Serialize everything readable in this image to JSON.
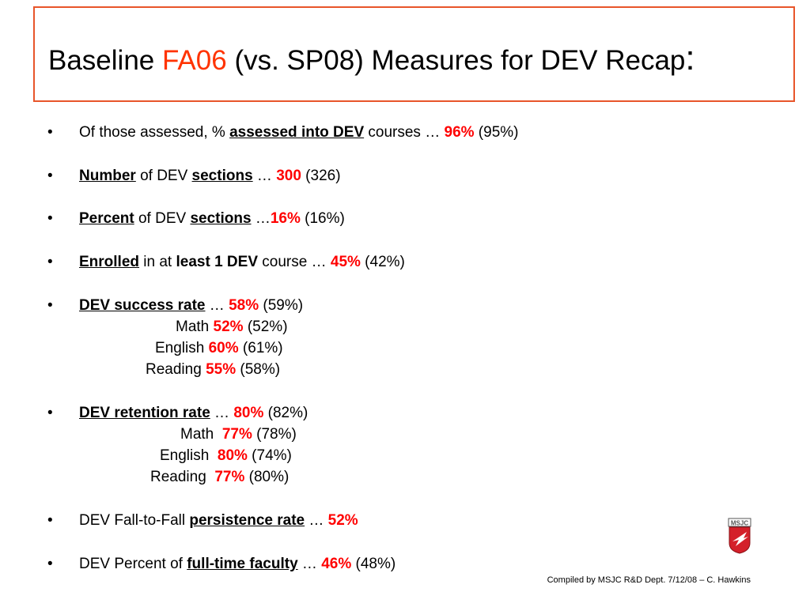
{
  "title": {
    "prefix": "Baseline ",
    "highlight": "FA06",
    "suffix": " (vs. SP08) Measures for DEV Recap",
    "colon": ":",
    "highlight_color": "#ff3300"
  },
  "bullet_char": "•",
  "items": {
    "assessed": {
      "pre": "Of those assessed, % ",
      "term": "assessed into DEV",
      "mid": " courses … ",
      "value": "96%",
      "prev": " (95%)"
    },
    "number_sections": {
      "term1": "Number",
      "mid1": " of DEV ",
      "term2": "sections",
      "mid2": " … ",
      "value": "300",
      "prev": " (326)"
    },
    "percent_sections": {
      "term1": "Percent",
      "mid1": " of DEV ",
      "term2": "sections",
      "mid2": " …",
      "value": "16%",
      "prev": " (16%)"
    },
    "enrolled": {
      "term1": "Enrolled",
      "mid1": " in at ",
      "term2": "least 1 DEV",
      "mid2": " course … ",
      "value": "45%",
      "prev": " (42%)"
    },
    "success": {
      "term": "DEV success rate",
      "mid": " … ",
      "value": "58%",
      "prev": " (59%)",
      "subs": [
        {
          "label": "Math ",
          "value": "52%",
          "prev": " (52%)"
        },
        {
          "label": "English ",
          "value": "60%",
          "prev": " (61%)"
        },
        {
          "label": "Reading ",
          "value": "55%",
          "prev": " (58%)"
        }
      ]
    },
    "retention": {
      "term": "DEV retention rate",
      "mid": " … ",
      "value": "80%",
      "prev": " (82%)",
      "subs": [
        {
          "label": "Math  ",
          "value": "77%",
          "prev": " (78%)"
        },
        {
          "label": "English  ",
          "value": "80%",
          "prev": " (74%)"
        },
        {
          "label": "Reading  ",
          "value": "77%",
          "prev": " (80%)"
        }
      ]
    },
    "persistence": {
      "pre": "DEV Fall-to-Fall ",
      "term": "persistence rate",
      "mid": " … ",
      "value": "52%"
    },
    "faculty": {
      "pre": "DEV Percent of ",
      "term": "full-time faculty",
      "mid": " … ",
      "value": "46%",
      "prev": " (48%)"
    }
  },
  "footer": "Compiled by MSJC R&D Dept. 7/12/08 – C. Hawkins",
  "logo": {
    "icon": "msjc-shield-logo",
    "text": "MSJC",
    "color": "#d4202a"
  },
  "colors": {
    "value_red": "#ff0000",
    "border_orange": "#e8552a"
  }
}
